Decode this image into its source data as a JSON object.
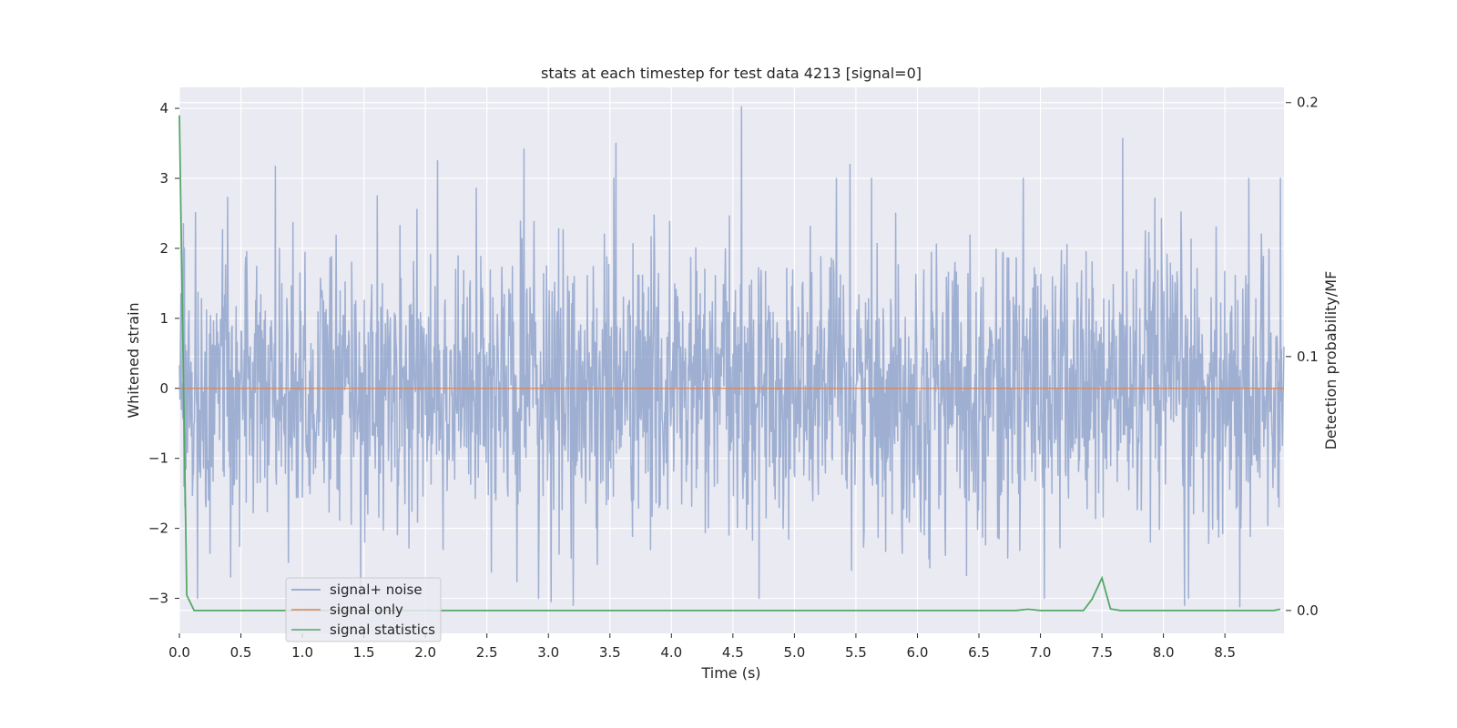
{
  "chart_data": {
    "type": "line",
    "title": "stats at each timestep for test data 4213 [signal=0]",
    "xlabel": "Time (s)",
    "ylabel": "Whitened strain",
    "y2label": "Detection probability/MF",
    "xlim": [
      0.0,
      8.98
    ],
    "ylim": [
      -3.5,
      4.3
    ],
    "y2lim": [
      -0.009,
      0.206
    ],
    "xticks": [
      "0.0",
      "0.5",
      "1.0",
      "1.5",
      "2.0",
      "2.5",
      "3.0",
      "3.5",
      "4.0",
      "4.5",
      "5.0",
      "5.5",
      "6.0",
      "6.5",
      "7.0",
      "7.5",
      "8.0",
      "8.5"
    ],
    "yticks": [
      "−3",
      "−2",
      "−1",
      "0",
      "1",
      "2",
      "3",
      "4"
    ],
    "y2ticks": [
      "0.0",
      "0.1",
      "0.2"
    ],
    "grid": true,
    "legend_position": "lower-left",
    "colors": {
      "background": "#eaeaf2",
      "grid": "#ffffff",
      "noise": "#7d96c4",
      "signal_only": "#dd8452",
      "statistics": "#55a868"
    },
    "series": [
      {
        "name": "signal+ noise",
        "axis": "left",
        "description_values": "whitened strain, roughly Gaussian between about -3.1 and 4.0",
        "peaks": [
          {
            "x": 0.78,
            "y": 3.17
          },
          {
            "x": 2.1,
            "y": 3.25
          },
          {
            "x": 2.8,
            "y": 3.42
          },
          {
            "x": 3.55,
            "y": 3.5
          },
          {
            "x": 4.57,
            "y": 4.02
          },
          {
            "x": 5.45,
            "y": 3.2
          },
          {
            "x": 7.67,
            "y": 3.57
          },
          {
            "x": 8.95,
            "y": 3.0
          },
          {
            "x": 3.02,
            "y": -3.05
          },
          {
            "x": 3.2,
            "y": -3.1
          },
          {
            "x": 8.17,
            "y": -3.1
          },
          {
            "x": 8.62,
            "y": -3.12
          }
        ]
      },
      {
        "name": "signal only",
        "axis": "left",
        "x": [
          0.0,
          8.98
        ],
        "y": [
          0.0,
          0.0
        ]
      },
      {
        "name": "signal statistics",
        "axis": "right",
        "x": [
          0.0,
          0.06,
          0.12,
          0.5,
          1.0,
          2.0,
          3.0,
          4.0,
          5.0,
          6.0,
          6.8,
          6.9,
          7.0,
          7.35,
          7.42,
          7.5,
          7.57,
          7.65,
          8.0,
          8.5,
          8.9,
          8.95
        ],
        "y": [
          0.195,
          0.006,
          0.0,
          0.0,
          0.0,
          0.0,
          0.0,
          0.0,
          0.0,
          0.0,
          0.0,
          0.0005,
          0.0,
          0.0,
          0.0045,
          0.0128,
          0.0006,
          0.0,
          0.0,
          0.0,
          0.0,
          0.0005
        ]
      }
    ]
  }
}
